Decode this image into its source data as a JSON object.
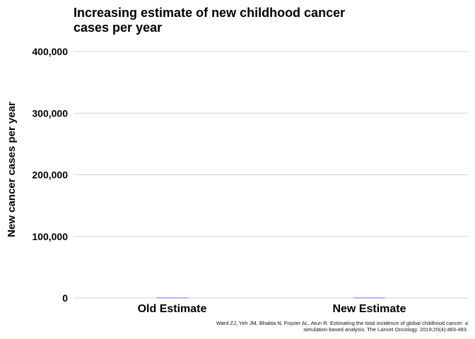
{
  "chart_data": {
    "type": "bar",
    "title": "Increasing estimate of new childhood cancer cases per year",
    "xlabel": "",
    "ylabel": "New cancer cases per year",
    "categories": [
      "Old Estimate",
      "New Estimate"
    ],
    "values": [
      0,
      0
    ],
    "ylim": [
      0,
      400000
    ],
    "yticks": [
      0,
      100000,
      200000,
      300000,
      400000
    ],
    "ytick_labels": [
      "0",
      "100,000",
      "200,000",
      "300,000",
      "400,000"
    ],
    "grid": "horizontal",
    "bar_color": "#9b9bff",
    "grid_color": "#d0d0d0"
  },
  "source": "Ward ZJ, Yeh JM, Bhakta N, Frazier AL, Atun R. Estimating the total incidence of global childhood cancer: a simulation-based analysis. The Lancet Oncology. 2019;20(4):483-493."
}
